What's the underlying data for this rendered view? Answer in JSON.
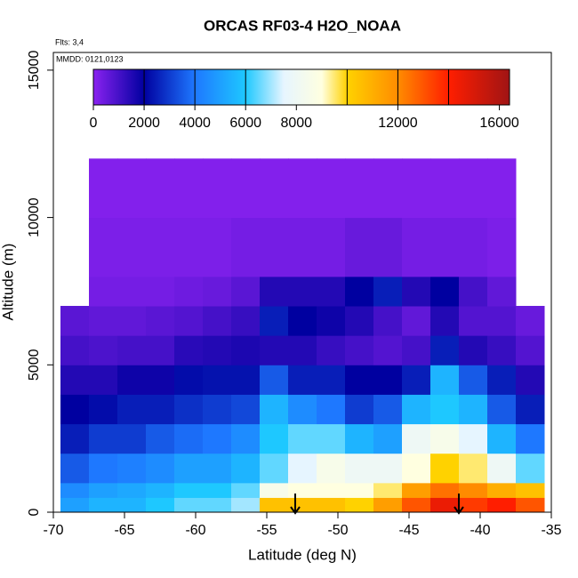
{
  "chart_data": {
    "type": "heatmap",
    "title": "ORCAS RF03-4 H2O_NOAA",
    "annotations": [
      "Flts: 3,4",
      "MMDD: 0121,0123"
    ],
    "x_label": "Latitude (deg N)",
    "y_label": "Altitude (m)",
    "xlim": [
      -70,
      -35
    ],
    "ylim": [
      0,
      15600
    ],
    "xticks": [
      -70,
      -65,
      -60,
      -55,
      -50,
      -45,
      -40,
      -35
    ],
    "yticks": [
      0,
      5000,
      10000,
      15000
    ],
    "lat_edges": [
      -69.5,
      -67.5,
      -65.5,
      -63.5,
      -61.5,
      -59.5,
      -57.5,
      -55.5,
      -53.5,
      -51.5,
      -49.5,
      -47.5,
      -45.5,
      -43.5,
      -41.5,
      -39.5,
      -37.5,
      -35.5
    ],
    "alt_edges": [
      0,
      500,
      1000,
      2000,
      3000,
      4000,
      5000,
      6000,
      7000,
      8000,
      10000,
      12000
    ],
    "values": [
      [
        5000,
        4500,
        3500,
        2500,
        2000,
        1500,
        1000,
        700,
        null,
        null,
        null
      ],
      [
        5500,
        5000,
        4000,
        3000,
        2200,
        1500,
        900,
        600,
        300,
        200,
        100
      ],
      [
        5500,
        5200,
        4200,
        3000,
        2500,
        1800,
        1000,
        600,
        300,
        200,
        100
      ],
      [
        6000,
        5500,
        4500,
        3500,
        2500,
        1800,
        1000,
        700,
        300,
        200,
        100
      ],
      [
        6500,
        6000,
        5000,
        3800,
        2800,
        2200,
        1400,
        800,
        400,
        200,
        100
      ],
      [
        6500,
        6000,
        5000,
        4000,
        3000,
        2300,
        1500,
        1000,
        500,
        200,
        100
      ],
      [
        7000,
        6500,
        5500,
        4500,
        3200,
        2300,
        1600,
        1200,
        700,
        300,
        100
      ],
      [
        10500,
        8500,
        6500,
        6000,
        5500,
        3500,
        1500,
        2500,
        1500,
        300,
        100
      ],
      [
        10500,
        9000,
        7500,
        6500,
        4500,
        2500,
        1500,
        2000,
        1500,
        300,
        100
      ],
      [
        10500,
        9000,
        8500,
        6500,
        4000,
        2500,
        1200,
        1800,
        1500,
        300,
        100
      ],
      [
        10000,
        9000,
        8000,
        5500,
        3000,
        2000,
        1000,
        1500,
        2000,
        500,
        100
      ],
      [
        11500,
        9500,
        8000,
        5000,
        3500,
        2000,
        800,
        1000,
        2500,
        500,
        100
      ],
      [
        13000,
        11500,
        9000,
        8000,
        5500,
        2500,
        1000,
        600,
        1500,
        300,
        100
      ],
      [
        14500,
        12500,
        10000,
        8500,
        6000,
        5500,
        2500,
        1500,
        2000,
        300,
        100
      ],
      [
        13500,
        12000,
        9500,
        7500,
        5500,
        3500,
        1500,
        800,
        1000,
        300,
        100
      ],
      [
        14000,
        11000,
        8000,
        5500,
        3500,
        2500,
        1200,
        800,
        600,
        200,
        100
      ],
      [
        13000,
        10500,
        6500,
        4000,
        2500,
        1500,
        800,
        500,
        null,
        null,
        null
      ]
    ],
    "colorbar": {
      "lim": [
        0,
        16400
      ],
      "ticks": [
        0,
        2000,
        4000,
        6000,
        8000,
        12000,
        16000
      ],
      "colorscale": [
        [
          0,
          "#8a22f0"
        ],
        [
          2000,
          "#0000a0"
        ],
        [
          4000,
          "#1e78ff"
        ],
        [
          6000,
          "#1ec8ff"
        ],
        [
          7500,
          "#e6f5ff"
        ],
        [
          9000,
          "#ffffe0"
        ],
        [
          10000,
          "#ffd200"
        ],
        [
          12000,
          "#ff8c00"
        ],
        [
          14000,
          "#ff1e00"
        ],
        [
          16400,
          "#a01414"
        ]
      ]
    }
  }
}
